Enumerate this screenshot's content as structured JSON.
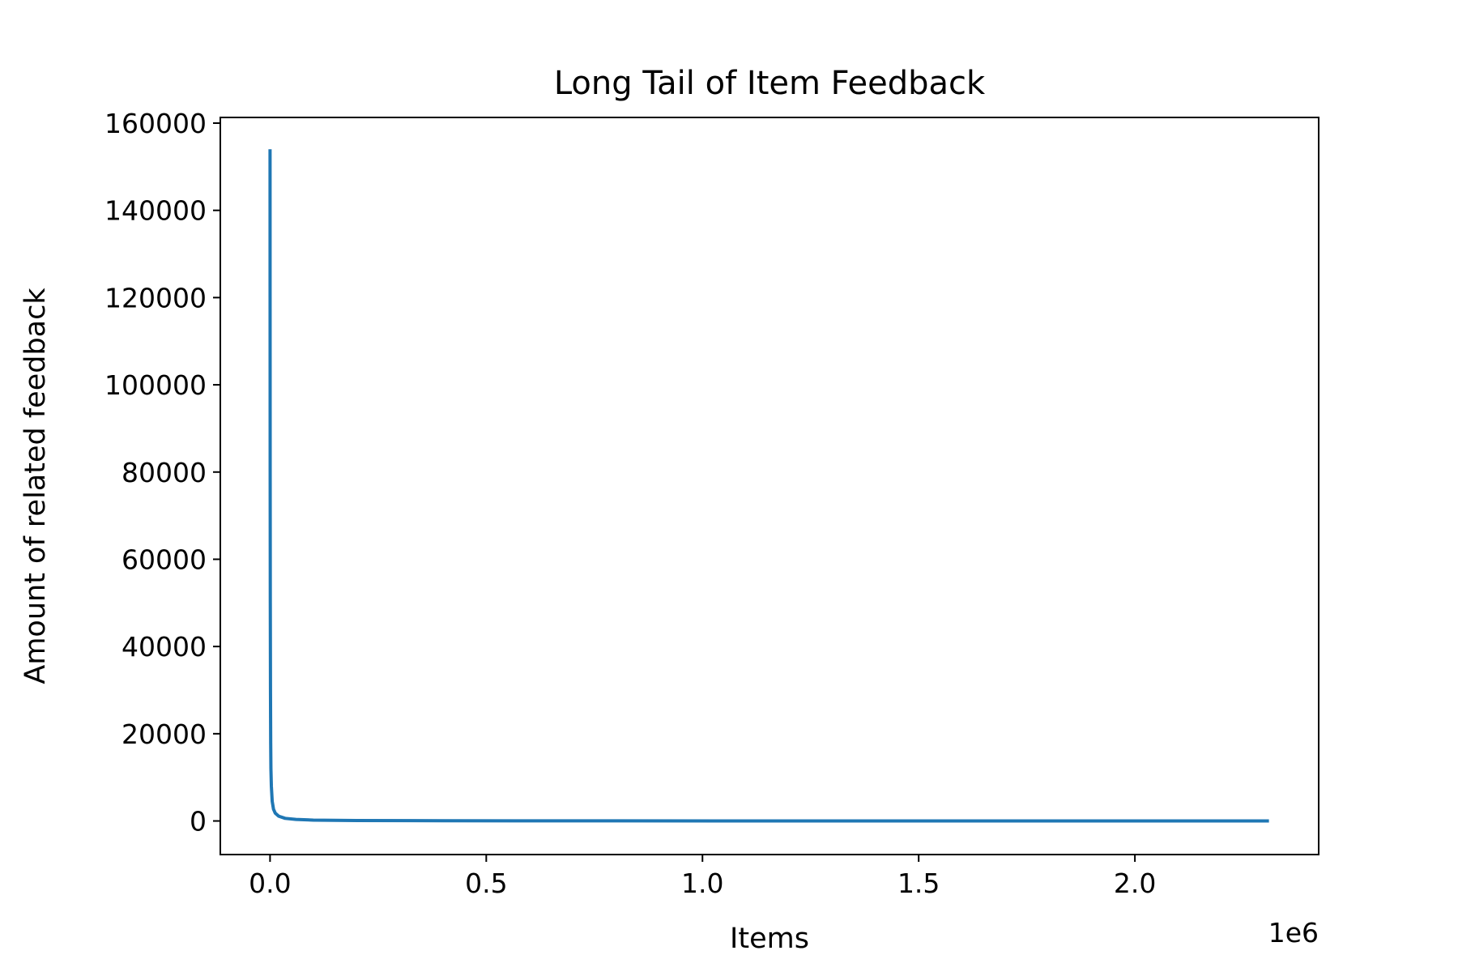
{
  "chart_data": {
    "type": "line",
    "title": "Long Tail of Item Feedback",
    "xlabel": "Items",
    "ylabel": "Amount of related feedback",
    "x_offset_label": "1e6",
    "xlim": [
      -115000,
      2425000
    ],
    "ylim": [
      -7700,
      161300
    ],
    "x_ticks": [
      0,
      500000,
      1000000,
      1500000,
      2000000
    ],
    "x_tick_labels": [
      "0.0",
      "0.5",
      "1.0",
      "1.5",
      "2.0"
    ],
    "y_ticks": [
      0,
      20000,
      40000,
      60000,
      80000,
      100000,
      120000,
      140000,
      160000
    ],
    "y_tick_labels": [
      "0",
      "20000",
      "40000",
      "60000",
      "80000",
      "100000",
      "120000",
      "140000",
      "160000"
    ],
    "grid": false,
    "series": [
      {
        "color": "#1f77b4",
        "x": [
          0,
          100,
          300,
          600,
          1000,
          1500,
          2000,
          3000,
          5000,
          8000,
          12000,
          20000,
          35000,
          60000,
          100000,
          200000,
          400000,
          800000,
          1500000,
          2310000
        ],
        "y": [
          154000,
          120000,
          80000,
          50000,
          30000,
          18000,
          12000,
          8000,
          4500,
          2700,
          1800,
          1100,
          600,
          350,
          200,
          100,
          50,
          20,
          5,
          1
        ]
      }
    ]
  }
}
